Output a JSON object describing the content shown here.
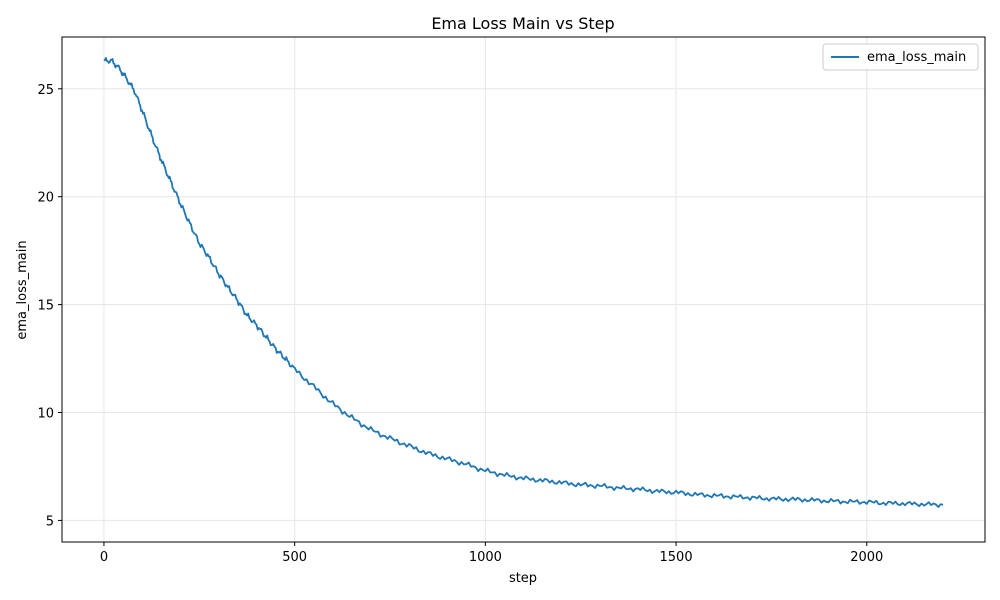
{
  "chart_data": {
    "type": "line",
    "title": "Ema Loss Main vs Step",
    "xlabel": "step",
    "ylabel": "ema_loss_main",
    "xlim": [
      -110,
      2310
    ],
    "ylim": [
      4.0,
      27.4
    ],
    "xticks": [
      0,
      500,
      1000,
      1500,
      2000
    ],
    "yticks": [
      5,
      10,
      15,
      20,
      25
    ],
    "grid": true,
    "legend_position": "top-right",
    "series": [
      {
        "name": "ema_loss_main",
        "color": "#1f77b4",
        "x": [
          0,
          20,
          40,
          60,
          80,
          100,
          120,
          140,
          160,
          180,
          200,
          225,
          250,
          275,
          300,
          325,
          350,
          375,
          400,
          425,
          450,
          475,
          500,
          550,
          600,
          650,
          700,
          750,
          800,
          850,
          900,
          950,
          1000,
          1050,
          1100,
          1150,
          1200,
          1250,
          1300,
          1350,
          1400,
          1450,
          1500,
          1550,
          1600,
          1650,
          1700,
          1750,
          1800,
          1850,
          1900,
          1950,
          2000,
          2050,
          2100,
          2150,
          2200
        ],
        "y": [
          26.3,
          26.3,
          25.95,
          25.45,
          24.9,
          24.0,
          23.05,
          22.15,
          21.3,
          20.5,
          19.7,
          18.75,
          17.85,
          17.2,
          16.45,
          15.8,
          15.2,
          14.5,
          14.05,
          13.5,
          12.95,
          12.5,
          12.0,
          11.2,
          10.4,
          9.75,
          9.2,
          8.8,
          8.45,
          8.1,
          7.85,
          7.6,
          7.3,
          7.1,
          6.95,
          6.85,
          6.75,
          6.65,
          6.6,
          6.5,
          6.45,
          6.35,
          6.3,
          6.2,
          6.15,
          6.1,
          6.05,
          6.0,
          5.98,
          5.95,
          5.9,
          5.87,
          5.85,
          5.8,
          5.78,
          5.75,
          5.72
        ]
      }
    ]
  }
}
